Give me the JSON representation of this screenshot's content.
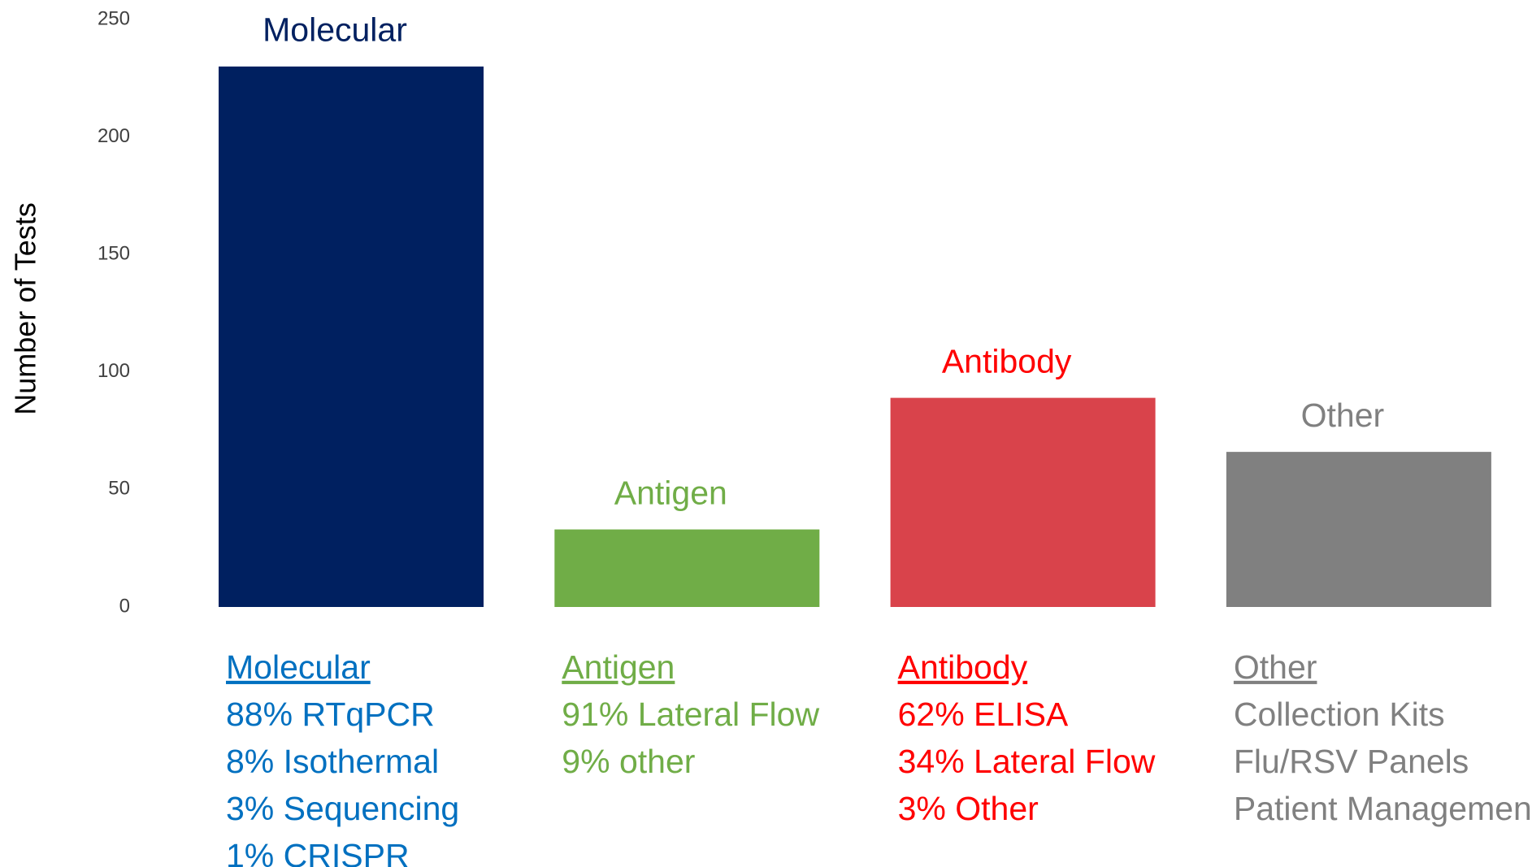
{
  "chart_data": {
    "type": "bar",
    "y_label": "Number of Tests",
    "categories": [
      "Molecular",
      "Antigen",
      "Antibody",
      "Other"
    ],
    "values": [
      230,
      33,
      89,
      66
    ],
    "colors": [
      "#002060",
      "#70ad47",
      "#d9434b",
      "#808080"
    ],
    "label_colors": [
      "#002060",
      "#70ad47",
      "#ff0000",
      "#808080"
    ],
    "detail_colors": [
      "#0070c0",
      "#70ad47",
      "#ff0000",
      "#808080"
    ],
    "details": [
      [
        "88% RTqPCR",
        "8% Isothermal",
        "3% Sequencing",
        "1% CRISPR"
      ],
      [
        "91% Lateral Flow",
        "9% other"
      ],
      [
        "62% ELISA",
        "34% Lateral Flow",
        "3% Other"
      ],
      [
        "Collection Kits",
        "Flu/RSV Panels",
        "Patient Management"
      ]
    ],
    "ylim": [
      0,
      250
    ],
    "yticks": [
      0,
      50,
      100,
      150,
      200,
      250
    ],
    "grid": false
  }
}
